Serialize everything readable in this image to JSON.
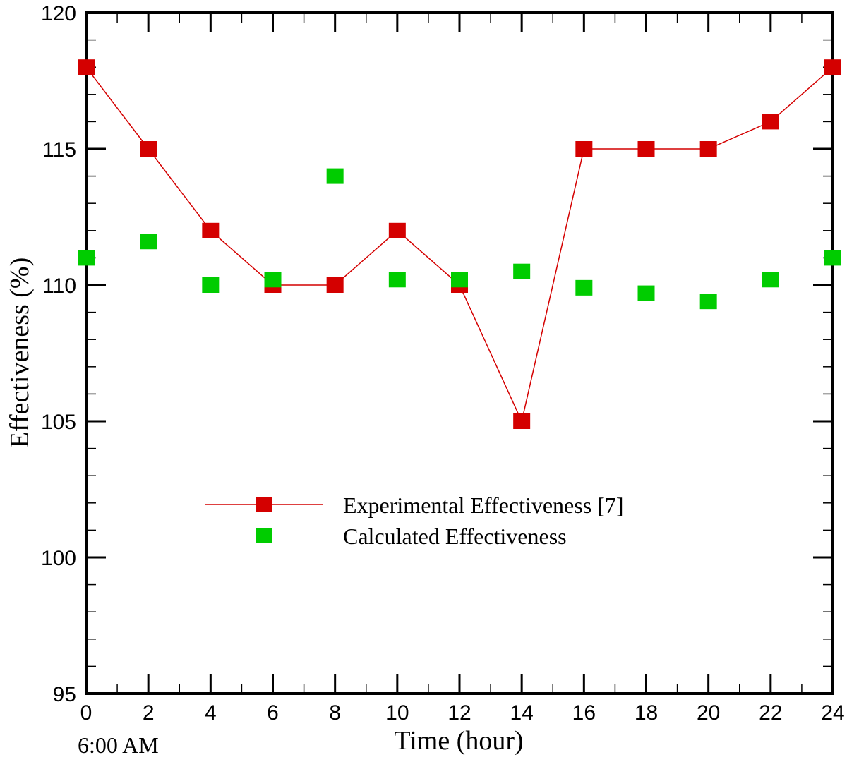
{
  "chart_data": {
    "type": "scatter",
    "xlabel": "Time (hour)",
    "ylabel": "Effectiveness (%)",
    "x_note": "6:00 AM",
    "xlim": [
      0,
      24
    ],
    "ylim": [
      95,
      120
    ],
    "x_ticks": [
      0,
      2,
      4,
      6,
      8,
      10,
      12,
      14,
      16,
      18,
      20,
      22,
      24
    ],
    "y_ticks": [
      95,
      100,
      105,
      110,
      115,
      120
    ],
    "grid": false,
    "legend_position": "center",
    "series": [
      {
        "name": "Experimental Effectiveness [7]",
        "style": "line-markers",
        "color": "#d40000",
        "x": [
          0,
          2,
          4,
          6,
          8,
          10,
          12,
          14,
          16,
          18,
          20,
          22,
          24
        ],
        "y": [
          118,
          115,
          112,
          110,
          110,
          112,
          110,
          105,
          115,
          115,
          115,
          116,
          118
        ]
      },
      {
        "name": "Calculated Effectiveness",
        "style": "markers",
        "color": "#00cc00",
        "x": [
          0,
          2,
          4,
          6,
          8,
          10,
          12,
          14,
          16,
          18,
          20,
          22,
          24
        ],
        "y": [
          111,
          111.6,
          110,
          110.2,
          114,
          110.2,
          110.2,
          110.5,
          109.9,
          109.7,
          109.4,
          110.2,
          111
        ]
      }
    ]
  }
}
